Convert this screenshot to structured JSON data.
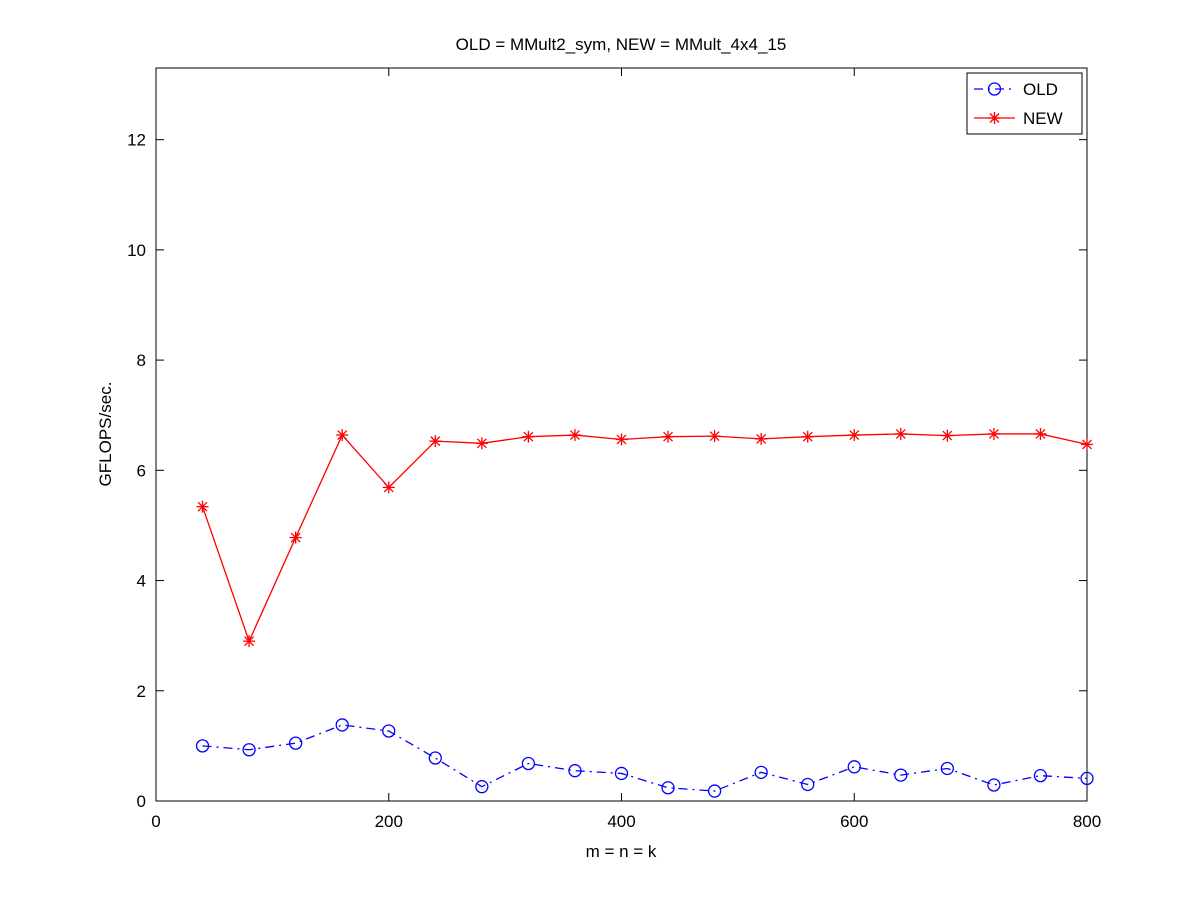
{
  "chart_data": {
    "type": "line",
    "title": "OLD = MMult2_sym, NEW = MMult_4x4_15",
    "xlabel": "m = n = k",
    "ylabel": "GFLOPS/sec.",
    "xlim": [
      0,
      800
    ],
    "ylim": [
      0,
      13.3
    ],
    "xticks": [
      0,
      200,
      400,
      600,
      800
    ],
    "yticks": [
      0,
      2,
      4,
      6,
      8,
      10,
      12
    ],
    "grid": false,
    "legend_position": "top-right",
    "x": [
      40,
      80,
      120,
      160,
      200,
      240,
      280,
      320,
      360,
      400,
      440,
      480,
      520,
      560,
      600,
      640,
      680,
      720,
      760,
      800
    ],
    "series": [
      {
        "name": "OLD",
        "color": "#0000ff",
        "line_style": "dash-dot",
        "marker": "circle",
        "values": [
          1.0,
          0.93,
          1.05,
          1.38,
          1.27,
          0.78,
          0.26,
          0.68,
          0.55,
          0.5,
          0.24,
          0.18,
          0.52,
          0.3,
          0.62,
          0.47,
          0.59,
          0.29,
          0.46,
          0.41
        ]
      },
      {
        "name": "NEW",
        "color": "#ff0000",
        "line_style": "solid",
        "marker": "asterisk",
        "values": [
          5.34,
          2.9,
          4.78,
          6.64,
          5.69,
          6.53,
          6.49,
          6.61,
          6.64,
          6.56,
          6.61,
          6.62,
          6.57,
          6.61,
          6.64,
          6.66,
          6.63,
          6.66,
          6.66,
          6.47
        ]
      }
    ]
  }
}
